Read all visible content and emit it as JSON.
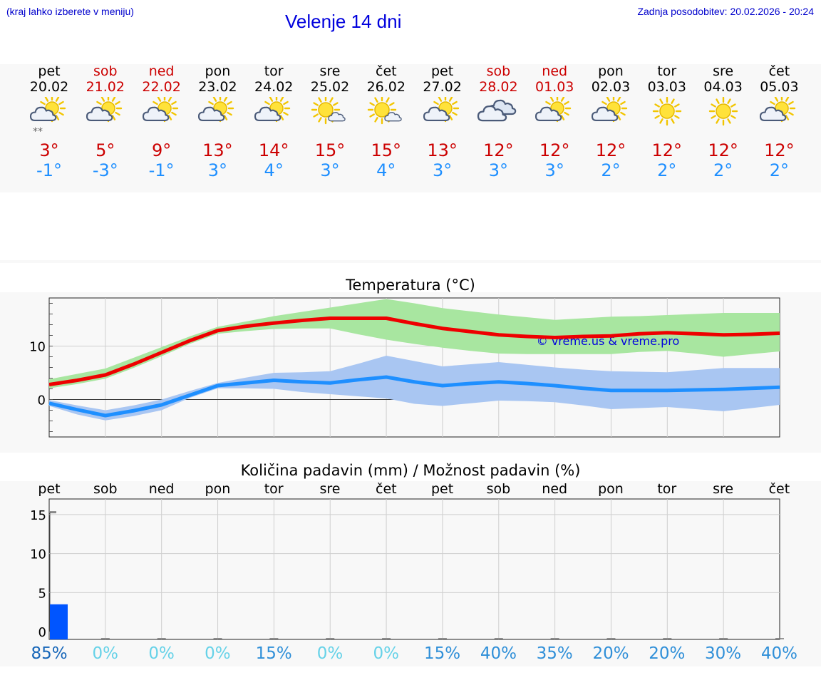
{
  "header": {
    "location_hint": "(kraj lahko izberete v meniju)",
    "title": "Velenje 14 dni",
    "updated": "Zadnja posodobitev: 20.02.2026 - 20:24"
  },
  "days": [
    {
      "name": "pet",
      "date": "20.02",
      "weekend": false,
      "icon": "partly-cloudy-snow-icon",
      "tmax": "3°",
      "tmin": "-1°"
    },
    {
      "name": "sob",
      "date": "21.02",
      "weekend": true,
      "icon": "partly-cloudy-icon",
      "tmax": "5°",
      "tmin": "-3°"
    },
    {
      "name": "ned",
      "date": "22.02",
      "weekend": true,
      "icon": "partly-cloudy-icon",
      "tmax": "9°",
      "tmin": "-1°"
    },
    {
      "name": "pon",
      "date": "23.02",
      "weekend": false,
      "icon": "partly-cloudy-icon",
      "tmax": "13°",
      "tmin": "3°"
    },
    {
      "name": "tor",
      "date": "24.02",
      "weekend": false,
      "icon": "partly-cloudy-icon",
      "tmax": "14°",
      "tmin": "4°"
    },
    {
      "name": "sre",
      "date": "25.02",
      "weekend": false,
      "icon": "sun-small-cloud-icon",
      "tmax": "15°",
      "tmin": "3°"
    },
    {
      "name": "čet",
      "date": "26.02",
      "weekend": false,
      "icon": "sun-small-cloud-icon",
      "tmax": "15°",
      "tmin": "4°"
    },
    {
      "name": "pet",
      "date": "27.02",
      "weekend": false,
      "icon": "partly-cloudy-icon",
      "tmax": "13°",
      "tmin": "3°"
    },
    {
      "name": "sob",
      "date": "28.02",
      "weekend": true,
      "icon": "cloudy-icon",
      "tmax": "12°",
      "tmin": "3°"
    },
    {
      "name": "ned",
      "date": "01.03",
      "weekend": true,
      "icon": "partly-cloudy-icon",
      "tmax": "12°",
      "tmin": "3°"
    },
    {
      "name": "pon",
      "date": "02.03",
      "weekend": false,
      "icon": "partly-cloudy-icon",
      "tmax": "12°",
      "tmin": "2°"
    },
    {
      "name": "tor",
      "date": "03.03",
      "weekend": false,
      "icon": "sun-icon",
      "tmax": "12°",
      "tmin": "2°"
    },
    {
      "name": "sre",
      "date": "04.03",
      "weekend": false,
      "icon": "sun-icon",
      "tmax": "12°",
      "tmin": "2°"
    },
    {
      "name": "čet",
      "date": "05.03",
      "weekend": false,
      "icon": "partly-cloudy-icon",
      "tmax": "12°",
      "tmin": "2°"
    }
  ],
  "colors": {
    "weekday": "#000000",
    "weekend": "#cc0000",
    "tmax_line": "#ee0000",
    "tmin_line": "#1e8fff",
    "tmax_band": "#a8e6a0",
    "tmin_band": "#a9c6f2",
    "precip_bar": "#0055ff",
    "watermark": "#0000dd"
  },
  "chart_data": [
    {
      "type": "line",
      "title": "Temperatura (°C)",
      "watermark": "© vreme.us & vreme.pro",
      "ylim": [
        -7,
        19
      ],
      "yticks": [
        0,
        10
      ],
      "x": [
        0,
        0.5,
        1,
        1.5,
        2,
        2.5,
        3,
        3.5,
        4,
        4.5,
        5,
        5.5,
        6,
        6.5,
        7,
        7.5,
        8,
        8.5,
        9,
        9.5,
        10,
        10.5,
        11,
        11.5,
        12,
        12.5,
        13
      ],
      "series": [
        {
          "name": "max",
          "values": [
            2.8,
            3.6,
            4.6,
            6.6,
            8.8,
            11.0,
            12.9,
            13.7,
            14.3,
            14.8,
            15.2,
            15.2,
            15.2,
            14.2,
            13.3,
            12.7,
            12.1,
            11.8,
            11.6,
            11.8,
            11.9,
            12.3,
            12.5,
            12.3,
            12.1,
            12.2,
            12.4
          ],
          "band_low": [
            2.1,
            2.9,
            3.9,
            5.9,
            8.1,
            10.4,
            12.3,
            12.8,
            13.2,
            13.3,
            13.3,
            12.2,
            11.2,
            10.4,
            9.7,
            9.1,
            8.6,
            8.5,
            8.5,
            8.5,
            8.5,
            8.9,
            9.1,
            8.6,
            8.0,
            8.5,
            9.0
          ],
          "band_high": [
            3.8,
            4.8,
            5.8,
            7.8,
            9.8,
            11.8,
            13.6,
            14.6,
            15.6,
            16.4,
            17.2,
            18.0,
            18.8,
            18.0,
            17.1,
            16.5,
            15.9,
            15.4,
            14.9,
            15.2,
            15.5,
            15.6,
            15.8,
            16.0,
            16.2,
            16.2,
            16.2
          ]
        },
        {
          "name": "min",
          "values": [
            -0.7,
            -1.9,
            -3.0,
            -2.1,
            -1.0,
            0.8,
            2.6,
            3.1,
            3.6,
            3.3,
            3.1,
            3.7,
            4.2,
            3.3,
            2.6,
            3.0,
            3.3,
            3.0,
            2.6,
            2.1,
            1.7,
            1.7,
            1.7,
            1.8,
            1.9,
            2.1,
            2.3
          ],
          "band_low": [
            -1.2,
            -2.8,
            -3.9,
            -3.1,
            -2.0,
            0.3,
            2.1,
            2.1,
            2.0,
            1.4,
            1.0,
            0.6,
            0.2,
            -0.8,
            -1.2,
            -0.7,
            -0.2,
            -0.3,
            -0.5,
            -1.1,
            -1.8,
            -1.6,
            -1.4,
            -1.8,
            -2.2,
            -1.6,
            -1.0
          ],
          "band_high": [
            -0.1,
            -1.1,
            -2.0,
            -1.1,
            0.0,
            1.6,
            3.1,
            4.1,
            5.0,
            5.1,
            5.3,
            6.7,
            8.2,
            7.2,
            6.2,
            6.6,
            7.0,
            6.5,
            6.0,
            5.6,
            5.3,
            5.2,
            5.1,
            5.5,
            5.9,
            5.9,
            5.9
          ]
        }
      ]
    },
    {
      "type": "bar",
      "title": "Količina padavin (mm) / Možnost padavin (%)",
      "ylim": [
        -1,
        17
      ],
      "yticks": [
        0,
        5,
        10,
        15
      ],
      "xlabels": [
        "pet",
        "sob",
        "ned",
        "pon",
        "tor",
        "sre",
        "čet",
        "pet",
        "sob",
        "ned",
        "pon",
        "tor",
        "sre",
        "čet"
      ],
      "values": [
        3.5,
        0,
        0,
        0,
        0,
        0,
        0,
        0,
        0,
        0,
        0,
        0,
        0,
        0
      ],
      "probability": [
        "85%",
        "0%",
        "0%",
        "0%",
        "15%",
        "0%",
        "0%",
        "15%",
        "40%",
        "35%",
        "20%",
        "20%",
        "30%",
        "40%"
      ],
      "probability_colors": [
        "#1565b8",
        "#66d2e8",
        "#66d2e8",
        "#66d2e8",
        "#2f8fd8",
        "#66d2e8",
        "#66d2e8",
        "#2f8fd8",
        "#2f8fd8",
        "#2f8fd8",
        "#2f8fd8",
        "#2f8fd8",
        "#2f8fd8",
        "#2f8fd8"
      ],
      "max_marker": 15.3
    }
  ]
}
